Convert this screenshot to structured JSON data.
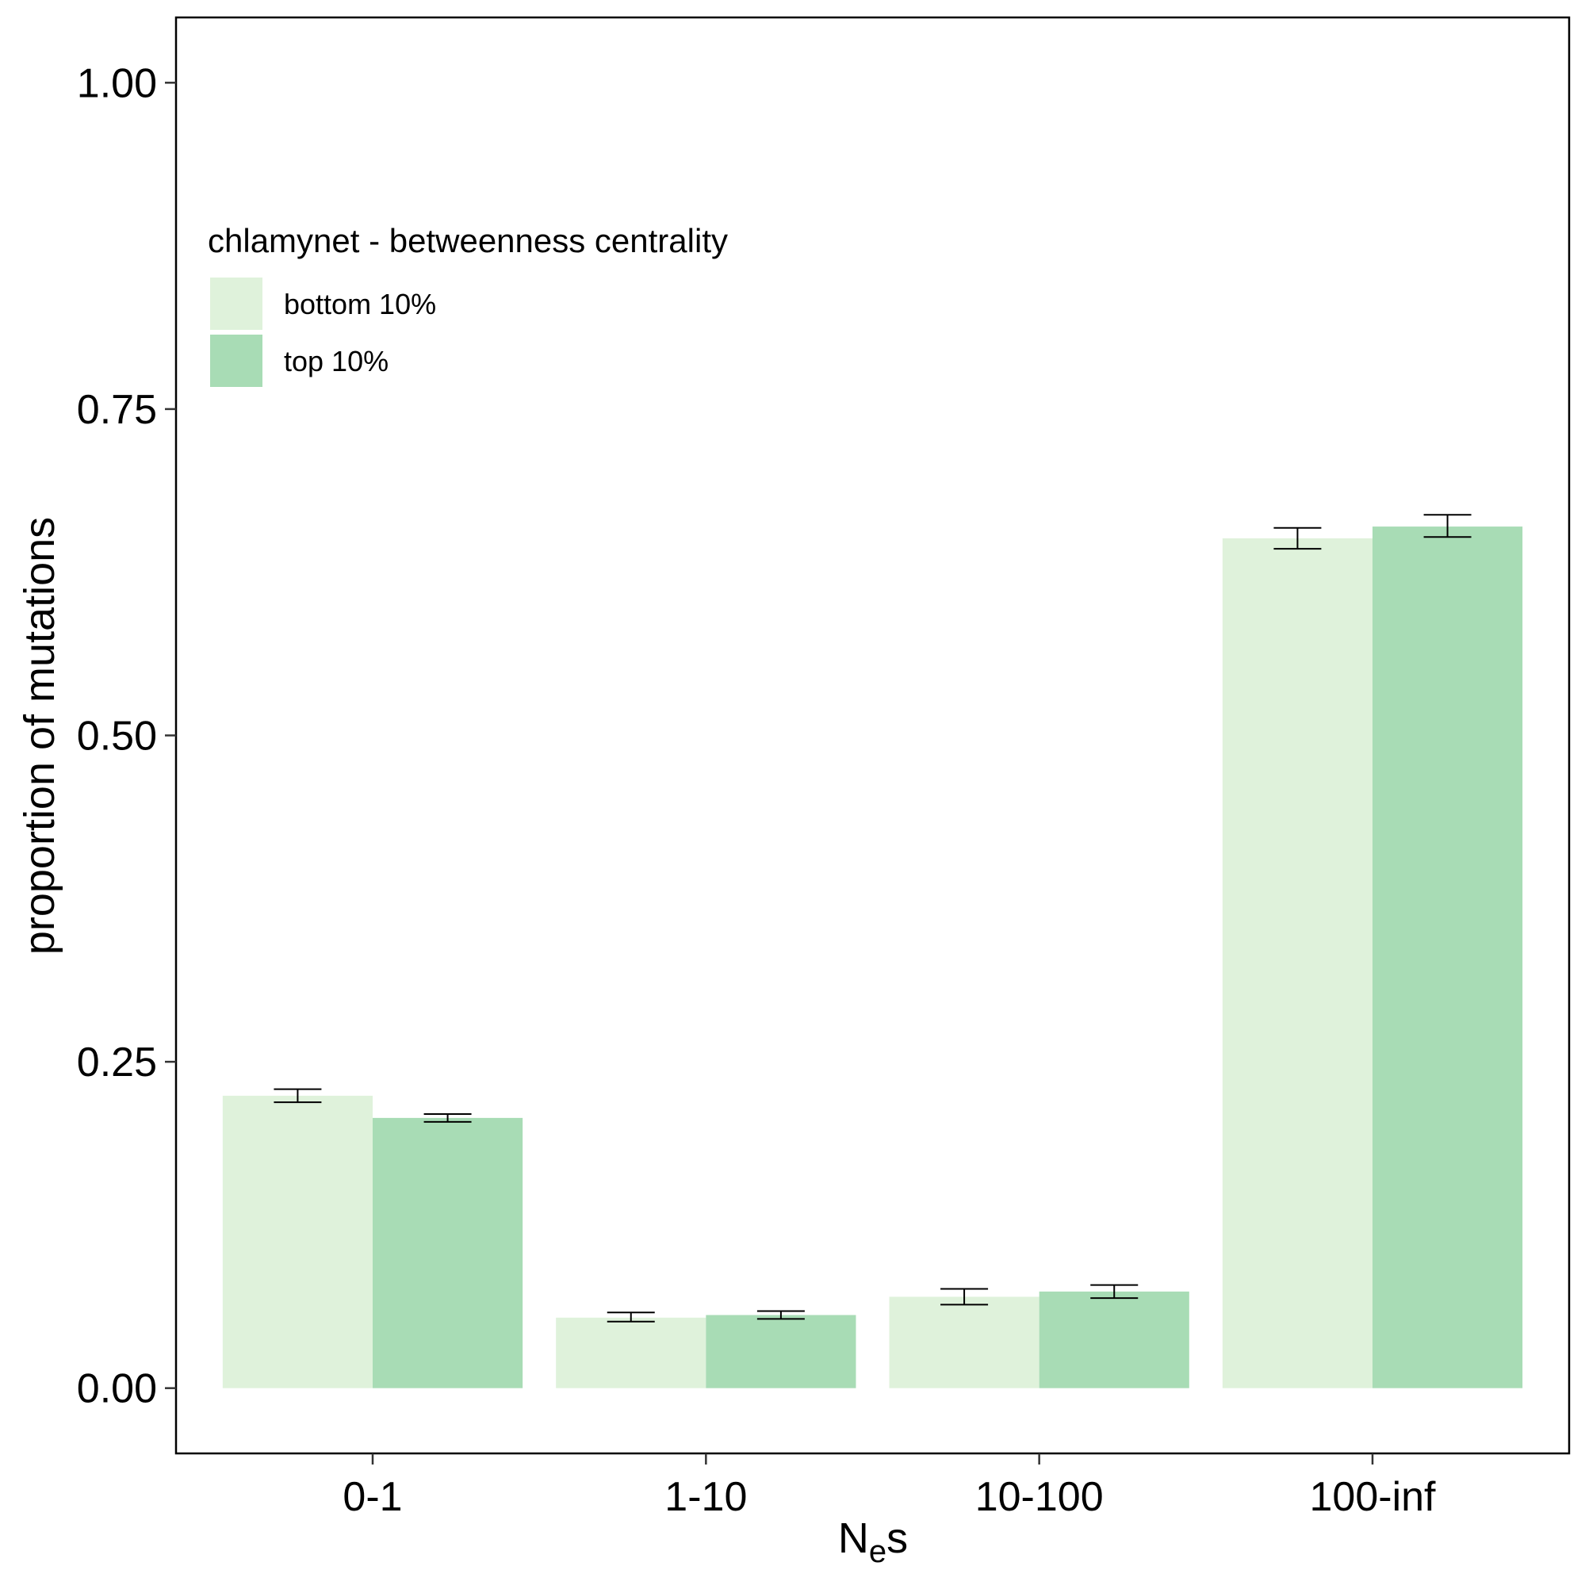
{
  "chart_data": {
    "type": "bar",
    "title": "",
    "xlabel": "Nes",
    "xlabel_parts": {
      "main": "N",
      "subscript": "e",
      "suffix": "s"
    },
    "ylabel": "proportion of mutations",
    "categories": [
      "0-1",
      "1-10",
      "10-100",
      "100-inf"
    ],
    "ylim": [
      -0.05,
      1.05
    ],
    "yticks": [
      0.0,
      0.25,
      0.5,
      0.75,
      1.0
    ],
    "ytick_labels": [
      "0.00",
      "0.25",
      "0.50",
      "0.75",
      "1.00"
    ],
    "grid": false,
    "legend": {
      "title": "chlamynet - betweenness centrality",
      "position": "top-left"
    },
    "series": [
      {
        "name": "bottom 10%",
        "color": "#dff2db",
        "values": [
          0.224,
          0.054,
          0.07,
          0.651
        ],
        "error_low": [
          0.219,
          0.051,
          0.064,
          0.643
        ],
        "error_high": [
          0.229,
          0.058,
          0.076,
          0.659
        ]
      },
      {
        "name": "top 10%",
        "color": "#a8dcb5",
        "values": [
          0.207,
          0.056,
          0.074,
          0.66
        ],
        "error_low": [
          0.204,
          0.053,
          0.069,
          0.652
        ],
        "error_high": [
          0.21,
          0.059,
          0.079,
          0.669
        ]
      }
    ]
  }
}
